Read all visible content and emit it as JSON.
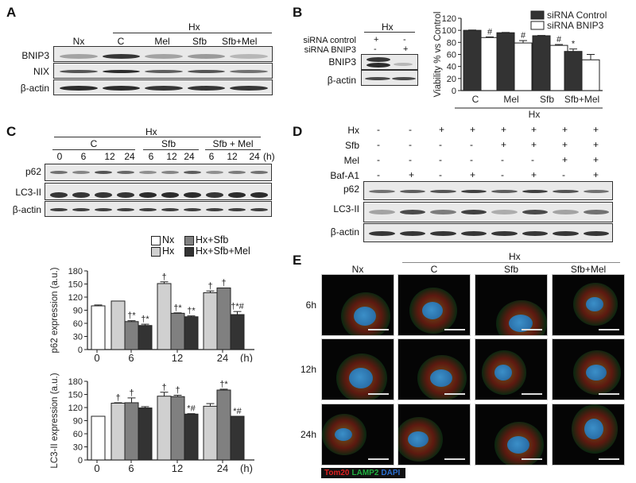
{
  "panels": {
    "A": {
      "letter": "A",
      "group_label": "Hx",
      "lanes": [
        "Nx",
        "C",
        "Mel",
        "Sfb",
        "Sfb+Mel"
      ],
      "rows": [
        "BNIP3",
        "NIX",
        "β-actin"
      ]
    },
    "B": {
      "letter": "B",
      "blot": {
        "group_label": "Hx",
        "conditions": [
          {
            "label": "siRNA control",
            "values": [
              "+",
              "-"
            ]
          },
          {
            "label": "siRNA BNIP3",
            "values": [
              "-",
              "+"
            ]
          }
        ],
        "rows": [
          "BNIP3",
          "β-actin"
        ]
      }
    },
    "C": {
      "letter": "C",
      "group_label": "Hx",
      "subgroups": [
        "C",
        "Sfb",
        "Sfb + Mel"
      ],
      "timepoints": [
        "0",
        "6",
        "12",
        "24",
        "6",
        "12",
        "24",
        "6",
        "12",
        "24"
      ],
      "unit": "(h)",
      "rows": [
        "p62",
        "LC3-II",
        "β-actin"
      ]
    },
    "D": {
      "letter": "D",
      "conditions": [
        {
          "label": "Hx",
          "values": [
            "-",
            "-",
            "+",
            "+",
            "+",
            "+",
            "+",
            "+"
          ]
        },
        {
          "label": "Sfb",
          "values": [
            "-",
            "-",
            "-",
            "-",
            "+",
            "+",
            "+",
            "+"
          ]
        },
        {
          "label": "Mel",
          "values": [
            "-",
            "-",
            "-",
            "-",
            "-",
            "-",
            "+",
            "+"
          ]
        },
        {
          "label": "Baf-A1",
          "values": [
            "-",
            "+",
            "-",
            "+",
            "-",
            "+",
            "-",
            "+"
          ]
        }
      ],
      "rows": [
        "p62",
        "LC3-II",
        "β-actin"
      ]
    },
    "E": {
      "letter": "E",
      "group_label": "Hx",
      "columns": [
        "Nx",
        "C",
        "Sfb",
        "Sfb+Mel"
      ],
      "rows": [
        "6h",
        "12h",
        "24h"
      ],
      "stain_legend": [
        {
          "label": "Tom20",
          "color": "#e02020"
        },
        {
          "label": "LAMP2",
          "color": "#20b040"
        },
        {
          "label": "DAPI",
          "color": "#2a6fd0"
        }
      ]
    }
  },
  "chart_data": [
    {
      "id": "B-viability",
      "type": "bar",
      "title": "",
      "xlabel": "Hx",
      "ylabel": "Viability % vs Control",
      "ylim": [
        0,
        120
      ],
      "yticks": [
        0,
        20,
        40,
        60,
        80,
        100,
        120
      ],
      "categories": [
        "C",
        "Mel",
        "Sfb",
        "Sfb+Mel"
      ],
      "legend_position": "top-right",
      "series": [
        {
          "name": "siRNA Control",
          "color": "#333333",
          "values": [
            100,
            96,
            91,
            65
          ],
          "errors": [
            0.5,
            0.5,
            0.5,
            4
          ],
          "annotations": [
            "",
            "",
            "",
            "*"
          ]
        },
        {
          "name": "siRNA BNIP3",
          "color": "#ffffff",
          "values": [
            88,
            79,
            75,
            51
          ],
          "errors": [
            1,
            4,
            1.5,
            9
          ],
          "annotations": [
            "#",
            "#",
            "#",
            ""
          ]
        }
      ]
    },
    {
      "id": "C-p62",
      "type": "bar",
      "title": "",
      "xlabel": "(h)",
      "ylabel": "p62 expression (a.u.)",
      "ylim": [
        0,
        180
      ],
      "yticks": [
        0,
        30,
        60,
        90,
        120,
        150,
        180
      ],
      "categories": [
        "0",
        "6",
        "12",
        "24"
      ],
      "legend_position": "top",
      "series": [
        {
          "name": "Nx",
          "color": "#ffffff",
          "values": [
            100,
            null,
            null,
            null
          ],
          "errors": [
            2,
            0,
            0,
            0
          ],
          "annotations": [
            "",
            "",
            "",
            ""
          ]
        },
        {
          "name": "Hx",
          "color": "#d0d0d0",
          "values": [
            null,
            111,
            151,
            130
          ],
          "errors": [
            0,
            0,
            4,
            4
          ],
          "annotations": [
            "",
            "",
            "†",
            "†"
          ]
        },
        {
          "name": "Hx+Sfb",
          "color": "#808080",
          "values": [
            null,
            64,
            83,
            141
          ],
          "errors": [
            0,
            2,
            1,
            0
          ],
          "annotations": [
            "",
            "†*",
            "†*",
            "†"
          ]
        },
        {
          "name": "Hx+Sfb+Mel",
          "color": "#333333",
          "values": [
            null,
            55,
            75,
            80
          ],
          "errors": [
            0,
            3,
            2,
            7
          ],
          "annotations": [
            "",
            "†*",
            "†*",
            "†*#"
          ]
        }
      ]
    },
    {
      "id": "C-LC3II",
      "type": "bar",
      "title": "",
      "xlabel": "(h)",
      "ylabel": "LC3-II expression (a.u.)",
      "ylim": [
        0,
        180
      ],
      "yticks": [
        0,
        30,
        60,
        90,
        120,
        150,
        180
      ],
      "categories": [
        "0",
        "6",
        "12",
        "24"
      ],
      "series": [
        {
          "name": "Nx",
          "color": "#ffffff",
          "values": [
            100,
            null,
            null,
            null
          ],
          "errors": [
            0,
            0,
            0,
            0
          ],
          "annotations": [
            "",
            "",
            "",
            ""
          ]
        },
        {
          "name": "Hx",
          "color": "#d0d0d0",
          "values": [
            null,
            130,
            146,
            123
          ],
          "errors": [
            0,
            1,
            9,
            6
          ],
          "annotations": [
            "",
            "†",
            "†",
            ""
          ]
        },
        {
          "name": "Hx+Sfb",
          "color": "#808080",
          "values": [
            null,
            131,
            145,
            160
          ],
          "errors": [
            0,
            11,
            3,
            2
          ],
          "annotations": [
            "",
            "†",
            "†",
            "†*"
          ]
        },
        {
          "name": "Hx+Sfb+Mel",
          "color": "#333333",
          "values": [
            null,
            119,
            105,
            100
          ],
          "errors": [
            0,
            3,
            1,
            0
          ],
          "annotations": [
            "",
            "",
            "*#",
            "*#"
          ]
        }
      ]
    }
  ]
}
